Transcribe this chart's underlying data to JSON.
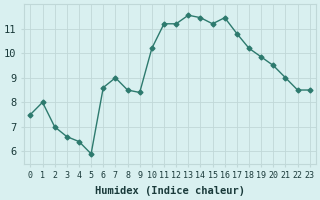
{
  "x": [
    0,
    1,
    2,
    3,
    4,
    5,
    6,
    7,
    8,
    9,
    10,
    11,
    12,
    13,
    14,
    15,
    16,
    17,
    18,
    19,
    20,
    21,
    22,
    23
  ],
  "y": [
    7.5,
    8.0,
    7.0,
    6.6,
    6.4,
    5.9,
    8.6,
    9.0,
    8.5,
    8.4,
    10.2,
    11.2,
    11.2,
    11.55,
    11.45,
    11.2,
    11.45,
    10.8,
    10.2,
    9.85,
    9.5,
    9.0,
    8.5,
    8.5
  ],
  "xlabel": "Humidex (Indice chaleur)",
  "xlim": [
    -0.5,
    23.5
  ],
  "ylim": [
    5.5,
    12.0
  ],
  "yticks": [
    6,
    7,
    8,
    9,
    10,
    11
  ],
  "xticks": [
    0,
    1,
    2,
    3,
    4,
    5,
    6,
    7,
    8,
    9,
    10,
    11,
    12,
    13,
    14,
    15,
    16,
    17,
    18,
    19,
    20,
    21,
    22,
    23
  ],
  "line_color": "#2d7a6e",
  "marker_color": "#2d7a6e",
  "bg_color": "#d9f0f0",
  "grid_color": "#c0d8d8",
  "axis_label_color": "#1a3a3a",
  "tick_label_color": "#1a3a3a",
  "xlabel_fontsize": 7.5,
  "ytick_fontsize": 7.5,
  "xtick_fontsize": 6.0
}
